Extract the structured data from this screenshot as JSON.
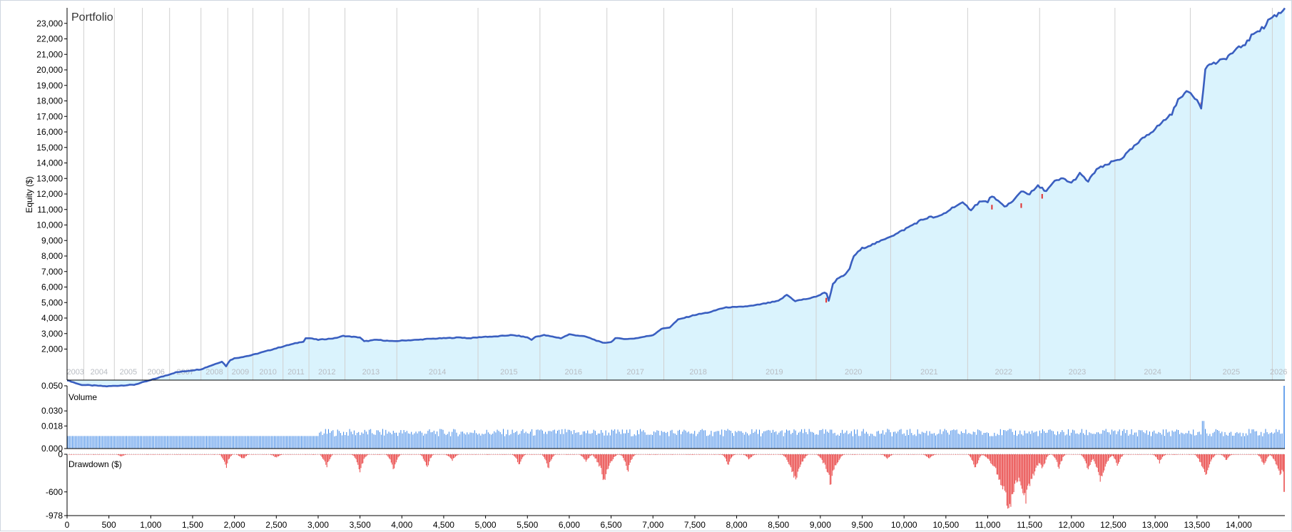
{
  "chart_data": [
    {
      "type": "area",
      "title": "Portfolio",
      "ylabel": "Equity ($)",
      "ylim": [
        0,
        24000
      ],
      "y_ticks": [
        "2,000",
        "3,000",
        "4,000",
        "5,000",
        "6,000",
        "7,000",
        "8,000",
        "9,000",
        "10,000",
        "11,000",
        "12,000",
        "13,000",
        "14,000",
        "15,000",
        "16,000",
        "17,000",
        "18,000",
        "19,000",
        "20,000",
        "21,000",
        "22,000",
        "23,000"
      ],
      "year_labels": [
        "2003",
        "2004",
        "2005",
        "2006",
        "2007",
        "2008",
        "2009",
        "2010",
        "2011",
        "2012",
        "2013",
        "2014",
        "2015",
        "2016",
        "2017",
        "2018",
        "2019",
        "2020",
        "2021",
        "2022",
        "2023",
        "2024",
        "2025",
        "2026"
      ],
      "year_boundaries": [
        200,
        565,
        900,
        1225,
        1600,
        1920,
        2220,
        2580,
        2890,
        3320,
        3940,
        4910,
        5650,
        6450,
        7130,
        7950,
        8950,
        9840,
        10760,
        11620,
        12520,
        13420,
        14400
      ],
      "x": [
        0,
        160,
        480,
        800,
        1000,
        1300,
        1600,
        1700,
        1850,
        1900,
        1950,
        2000,
        2200,
        2400,
        2600,
        2750,
        2830,
        2850,
        2900,
        3000,
        3200,
        3300,
        3500,
        3550,
        3700,
        3900,
        4000,
        4200,
        4300,
        4500,
        4700,
        4800,
        5000,
        5100,
        5300,
        5400,
        5500,
        5550,
        5600,
        5700,
        5800,
        5900,
        6000,
        6200,
        6400,
        6500,
        6550,
        6700,
        6800,
        7000,
        7100,
        7200,
        7300,
        7500,
        7700,
        7800,
        7900,
        8000,
        8200,
        8300,
        8400,
        8500,
        8600,
        8700,
        8800,
        8900,
        9000,
        9070,
        9100,
        9150,
        9200,
        9300,
        9350,
        9400,
        9500,
        9600,
        9700,
        9800,
        9900,
        10000,
        10100,
        10200,
        10300,
        10400,
        10500,
        10600,
        10700,
        10800,
        10900,
        11000,
        11050,
        11100,
        11200,
        11300,
        11400,
        11500,
        11600,
        11700,
        11800,
        11900,
        12000,
        12100,
        12200,
        12300,
        12400,
        12500,
        12600,
        12700,
        12800,
        12900,
        13000,
        13100,
        13200,
        13300,
        13400,
        13500,
        13550,
        13600,
        13650,
        13700,
        13800,
        13900,
        14000,
        14100,
        14200,
        14300,
        14350,
        14400,
        14500,
        14550
      ],
      "equity": [
        0,
        -300,
        -400,
        -300,
        0,
        500,
        700,
        900,
        1200,
        900,
        1300,
        1400,
        1600,
        1900,
        2200,
        2400,
        2500,
        2700,
        2700,
        2600,
        2700,
        2850,
        2750,
        2500,
        2600,
        2500,
        2550,
        2600,
        2650,
        2700,
        2750,
        2700,
        2800,
        2800,
        2900,
        2850,
        2750,
        2600,
        2800,
        2900,
        2800,
        2700,
        2950,
        2800,
        2400,
        2450,
        2700,
        2650,
        2700,
        2900,
        3300,
        3400,
        3900,
        4200,
        4400,
        4600,
        4700,
        4700,
        4800,
        4900,
        5000,
        5100,
        5500,
        5100,
        5200,
        5300,
        5500,
        5700,
        5100,
        6200,
        6500,
        6800,
        7200,
        8000,
        8500,
        8700,
        8900,
        9200,
        9400,
        9700,
        10000,
        10300,
        10500,
        10500,
        10800,
        11200,
        11400,
        11000,
        11500,
        11500,
        11900,
        11600,
        11200,
        11500,
        12200,
        12000,
        12500,
        12200,
        12800,
        13000,
        12700,
        13300,
        12800,
        13600,
        13800,
        14100,
        14300,
        14800,
        15300,
        15800,
        16200,
        16700,
        17200,
        18300,
        18600,
        18100,
        17600,
        20000,
        20400,
        20400,
        20600,
        21000,
        21400,
        21800,
        22500,
        22700,
        23200,
        23400,
        23700,
        24000
      ],
      "legend": "none",
      "grid": "vertical-years"
    },
    {
      "type": "bar",
      "title": "Volume",
      "y_ticks": [
        "0.000",
        "0.018",
        "0.030",
        "0.050"
      ],
      "ylim": [
        0,
        0.05
      ],
      "base_before_3000": 0.01,
      "base_after_3000": 0.013,
      "final_spike": 0.05
    },
    {
      "type": "bar",
      "title": "Drawdown ($)",
      "y_ticks": [
        "0",
        "-600",
        "-978"
      ],
      "ylim": [
        -978,
        0
      ],
      "troughs": [
        {
          "x": 650,
          "v": -40
        },
        {
          "x": 1900,
          "v": -240
        },
        {
          "x": 2100,
          "v": -90
        },
        {
          "x": 2500,
          "v": -60
        },
        {
          "x": 3100,
          "v": -250
        },
        {
          "x": 3500,
          "v": -310
        },
        {
          "x": 3900,
          "v": -280
        },
        {
          "x": 4300,
          "v": -260
        },
        {
          "x": 4600,
          "v": -120
        },
        {
          "x": 5400,
          "v": -200
        },
        {
          "x": 5750,
          "v": -260
        },
        {
          "x": 6200,
          "v": -150
        },
        {
          "x": 6420,
          "v": -500
        },
        {
          "x": 6700,
          "v": -300
        },
        {
          "x": 7900,
          "v": -190
        },
        {
          "x": 8150,
          "v": -90
        },
        {
          "x": 8700,
          "v": -500
        },
        {
          "x": 9120,
          "v": -520
        },
        {
          "x": 9800,
          "v": -80
        },
        {
          "x": 10300,
          "v": -80
        },
        {
          "x": 10850,
          "v": -280
        },
        {
          "x": 11250,
          "v": -978
        },
        {
          "x": 11450,
          "v": -830
        },
        {
          "x": 11650,
          "v": -300
        },
        {
          "x": 11850,
          "v": -270
        },
        {
          "x": 12200,
          "v": -300
        },
        {
          "x": 12350,
          "v": -480
        },
        {
          "x": 12550,
          "v": -220
        },
        {
          "x": 13050,
          "v": -150
        },
        {
          "x": 13600,
          "v": -420
        },
        {
          "x": 13850,
          "v": -100
        },
        {
          "x": 14300,
          "v": -220
        },
        {
          "x": 14500,
          "v": -430
        }
      ]
    }
  ],
  "x_axis": {
    "xlim": [
      0,
      14550
    ],
    "ticks": [
      "0",
      "500",
      "1,000",
      "1,500",
      "2,000",
      "2,500",
      "3,000",
      "3,500",
      "4,000",
      "4,500",
      "5,000",
      "5,500",
      "6,000",
      "6,500",
      "7,000",
      "7,500",
      "8,000",
      "8,500",
      "9,000",
      "9,500",
      "10,000",
      "10,500",
      "11,000",
      "11,500",
      "12,000",
      "12,500",
      "13,000",
      "13,500",
      "14,000"
    ]
  },
  "colors": {
    "equity_line": "#3a5fc0",
    "equity_fill": "#daf3fd",
    "equity_dip": "#e03030",
    "volume_bar": "#3b86e6",
    "drawdown_bar": "#e84040",
    "grid": "#d0d0d0",
    "axis": "#000000",
    "year_label": "#b8bcc2"
  }
}
